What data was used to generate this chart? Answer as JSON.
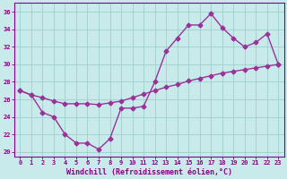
{
  "xlabel": "Windchill (Refroidissement éolien,°C)",
  "line1": {
    "x": [
      0,
      1,
      2,
      3,
      4,
      5,
      6,
      7,
      8,
      9,
      10,
      11,
      12,
      13,
      14,
      15,
      16,
      17,
      18,
      19,
      20,
      21,
      22,
      23
    ],
    "y": [
      27.0,
      26.5,
      24.5,
      24.0,
      22.0,
      21.0,
      21.0,
      20.3,
      21.5,
      25.0,
      25.0,
      25.2,
      28.0,
      31.5,
      33.0,
      34.5,
      34.5,
      35.8,
      34.2,
      33.0,
      32.0,
      32.5,
      33.5,
      30.0
    ],
    "color": "#993399",
    "marker": "D",
    "markersize": 2.5,
    "linewidth": 1.0
  },
  "line2": {
    "x": [
      0,
      1,
      2,
      3,
      4,
      5,
      6,
      7,
      8,
      9,
      10,
      11,
      12,
      13,
      14,
      15,
      16,
      17,
      18,
      19,
      20,
      21,
      22,
      23
    ],
    "y": [
      27.0,
      26.5,
      26.2,
      25.8,
      25.5,
      25.5,
      25.5,
      25.4,
      25.6,
      25.8,
      26.2,
      26.6,
      27.0,
      27.4,
      27.7,
      28.1,
      28.4,
      28.7,
      29.0,
      29.2,
      29.4,
      29.6,
      29.8,
      30.0
    ],
    "color": "#993399",
    "marker": "D",
    "markersize": 2.5,
    "linewidth": 1.0
  },
  "xlim": [
    -0.5,
    23.5
  ],
  "ylim": [
    19.5,
    37.0
  ],
  "yticks": [
    20,
    22,
    24,
    26,
    28,
    30,
    32,
    34,
    36
  ],
  "xticks": [
    0,
    1,
    2,
    3,
    4,
    5,
    6,
    7,
    8,
    9,
    10,
    11,
    12,
    13,
    14,
    15,
    16,
    17,
    18,
    19,
    20,
    21,
    22,
    23
  ],
  "bg_color": "#c8eaea",
  "grid_color": "#9dcfcf",
  "tick_color": "#880088",
  "label_color": "#880088",
  "axis_color": "#880088"
}
